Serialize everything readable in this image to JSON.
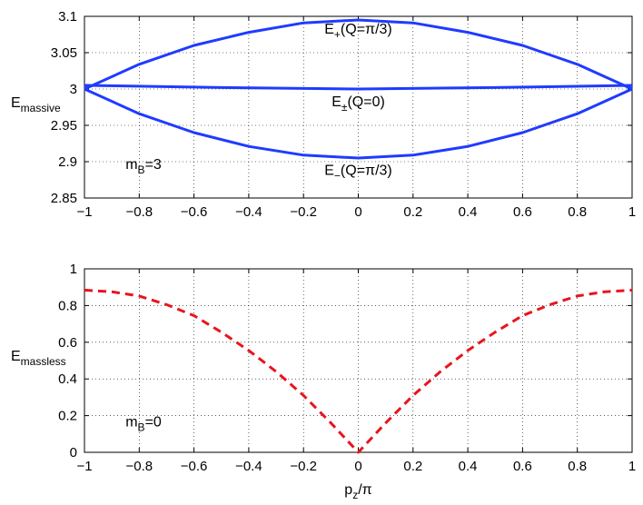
{
  "chart_data": [
    {
      "type": "line",
      "x_range": [
        -1,
        1
      ],
      "ylim": [
        2.85,
        3.1
      ],
      "x_ticks": [
        -1,
        -0.8,
        -0.6,
        -0.4,
        -0.2,
        0,
        0.2,
        0.4,
        0.6,
        0.8,
        1
      ],
      "y_ticks": [
        2.85,
        2.9,
        2.95,
        3,
        3.05,
        3.1
      ],
      "x_tick_labels": [
        "−1",
        "−0.8",
        "−0.6",
        "−0.4",
        "−0.2",
        "0",
        "0.2",
        "0.4",
        "0.6",
        "0.8",
        "1"
      ],
      "y_tick_labels": [
        "2.85",
        "2.9",
        "2.95",
        "3",
        "3.05",
        "3.1"
      ],
      "ylabel": {
        "main": "E",
        "sub": "massive"
      },
      "grid": true,
      "line_color": "#1f3bff",
      "series": [
        {
          "name": "E+(Q=π/3)",
          "x": [
            -1,
            -0.8,
            -0.6,
            -0.4,
            -0.2,
            0,
            0.2,
            0.4,
            0.6,
            0.8,
            1
          ],
          "y": [
            3.0,
            3.034,
            3.06,
            3.078,
            3.091,
            3.095,
            3.091,
            3.078,
            3.06,
            3.034,
            3.0
          ]
        },
        {
          "name": "E±(Q=0)",
          "x": [
            -1,
            -0.5,
            0,
            0.5,
            1
          ],
          "y": [
            3.005,
            3.002,
            3.0,
            3.002,
            3.005
          ]
        },
        {
          "name": "E−(Q=π/3)",
          "x": [
            -1,
            -0.8,
            -0.6,
            -0.4,
            -0.2,
            0,
            0.2,
            0.4,
            0.6,
            0.8,
            1
          ],
          "y": [
            3.0,
            2.966,
            2.94,
            2.921,
            2.909,
            2.905,
            2.909,
            2.921,
            2.94,
            2.966,
            3.0
          ]
        }
      ],
      "annotations": [
        {
          "main": "E",
          "sub": "+",
          "rest": "(Q=π/3)",
          "x": 0.0,
          "y": 3.076
        },
        {
          "main": "E",
          "sub": "±",
          "rest": "(Q=0)",
          "x": 0.0,
          "y": 2.976
        },
        {
          "main": "E",
          "sub": "−",
          "rest": "(Q=π/3)",
          "x": 0.0,
          "y": 2.882
        },
        {
          "main": "m",
          "sub": "B",
          "rest": "=3",
          "x": -0.85,
          "y": 2.89
        }
      ]
    },
    {
      "type": "line",
      "x_range": [
        -1,
        1
      ],
      "ylim": [
        0,
        1
      ],
      "x_ticks": [
        -1,
        -0.8,
        -0.6,
        -0.4,
        -0.2,
        0,
        0.2,
        0.4,
        0.6,
        0.8,
        1
      ],
      "y_ticks": [
        0,
        0.2,
        0.4,
        0.6,
        0.8,
        1
      ],
      "x_tick_labels": [
        "−1",
        "−0.8",
        "−0.6",
        "−0.4",
        "−0.2",
        "0",
        "0.2",
        "0.4",
        "0.6",
        "0.8",
        "1"
      ],
      "y_tick_labels": [
        "0",
        "0.2",
        "0.4",
        "0.6",
        "0.8",
        "1"
      ],
      "xlabel": {
        "main": "p",
        "sub": "z",
        "rest": "/π"
      },
      "ylabel": {
        "main": "E",
        "sub": "massless"
      },
      "grid": true,
      "line_color": "#e8141e",
      "series": [
        {
          "x": [
            -1,
            -0.9,
            -0.8,
            -0.7,
            -0.6,
            -0.5,
            -0.4,
            -0.3,
            -0.2,
            -0.1,
            0,
            0.1,
            0.2,
            0.3,
            0.4,
            0.5,
            0.6,
            0.7,
            0.8,
            0.9,
            1
          ],
          "y": [
            0.884,
            0.875,
            0.852,
            0.805,
            0.745,
            0.655,
            0.555,
            0.44,
            0.31,
            0.16,
            0.0,
            0.16,
            0.31,
            0.44,
            0.555,
            0.655,
            0.745,
            0.805,
            0.852,
            0.875,
            0.884
          ]
        }
      ],
      "annotations": [
        {
          "main": "m",
          "sub": "B",
          "rest": "=0",
          "x": -0.85,
          "y": 0.14
        }
      ]
    }
  ]
}
